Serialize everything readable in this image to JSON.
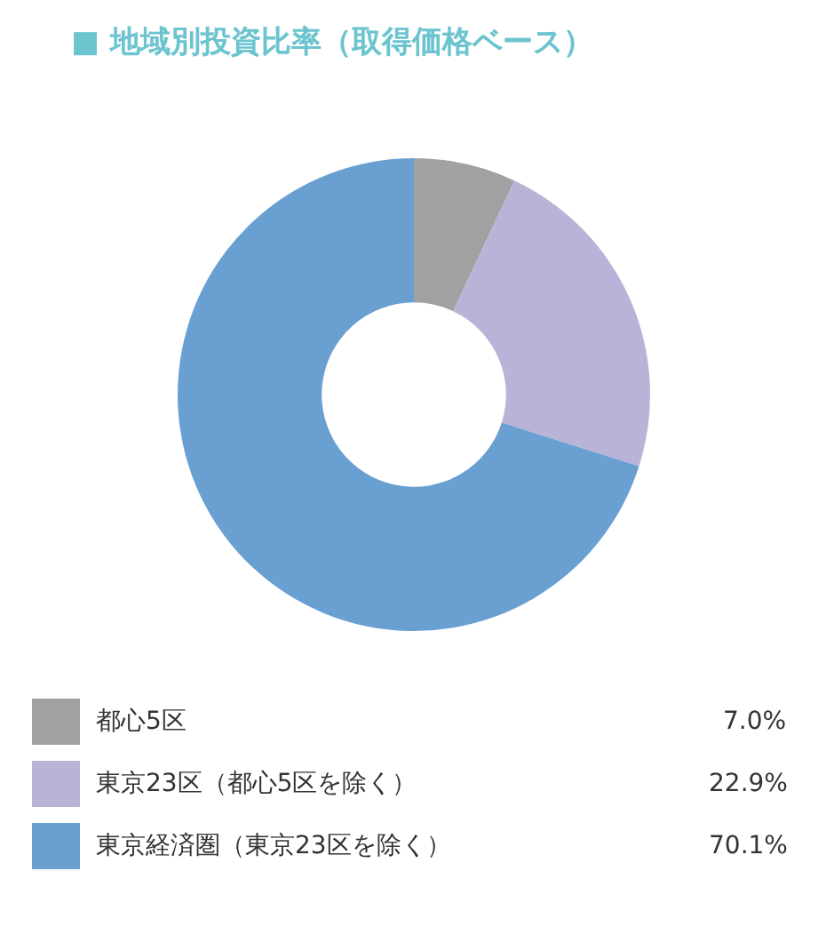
{
  "chart_data": {
    "type": "donut",
    "title": "■ 地域別投資比率（取得価格ベース）",
    "categories": [
      "都心5区",
      "東京23区（都心5区を除く）",
      "東京経済圏（東京23区を除く）"
    ],
    "values": [
      7.0,
      22.9,
      70.1
    ],
    "colors": [
      "#a0a2a1",
      "#b9b3d8",
      "#6a9fd2"
    ],
    "value_labels": [
      "7.0%",
      "22.9%",
      "70.1%"
    ],
    "legend": "bottom"
  }
}
